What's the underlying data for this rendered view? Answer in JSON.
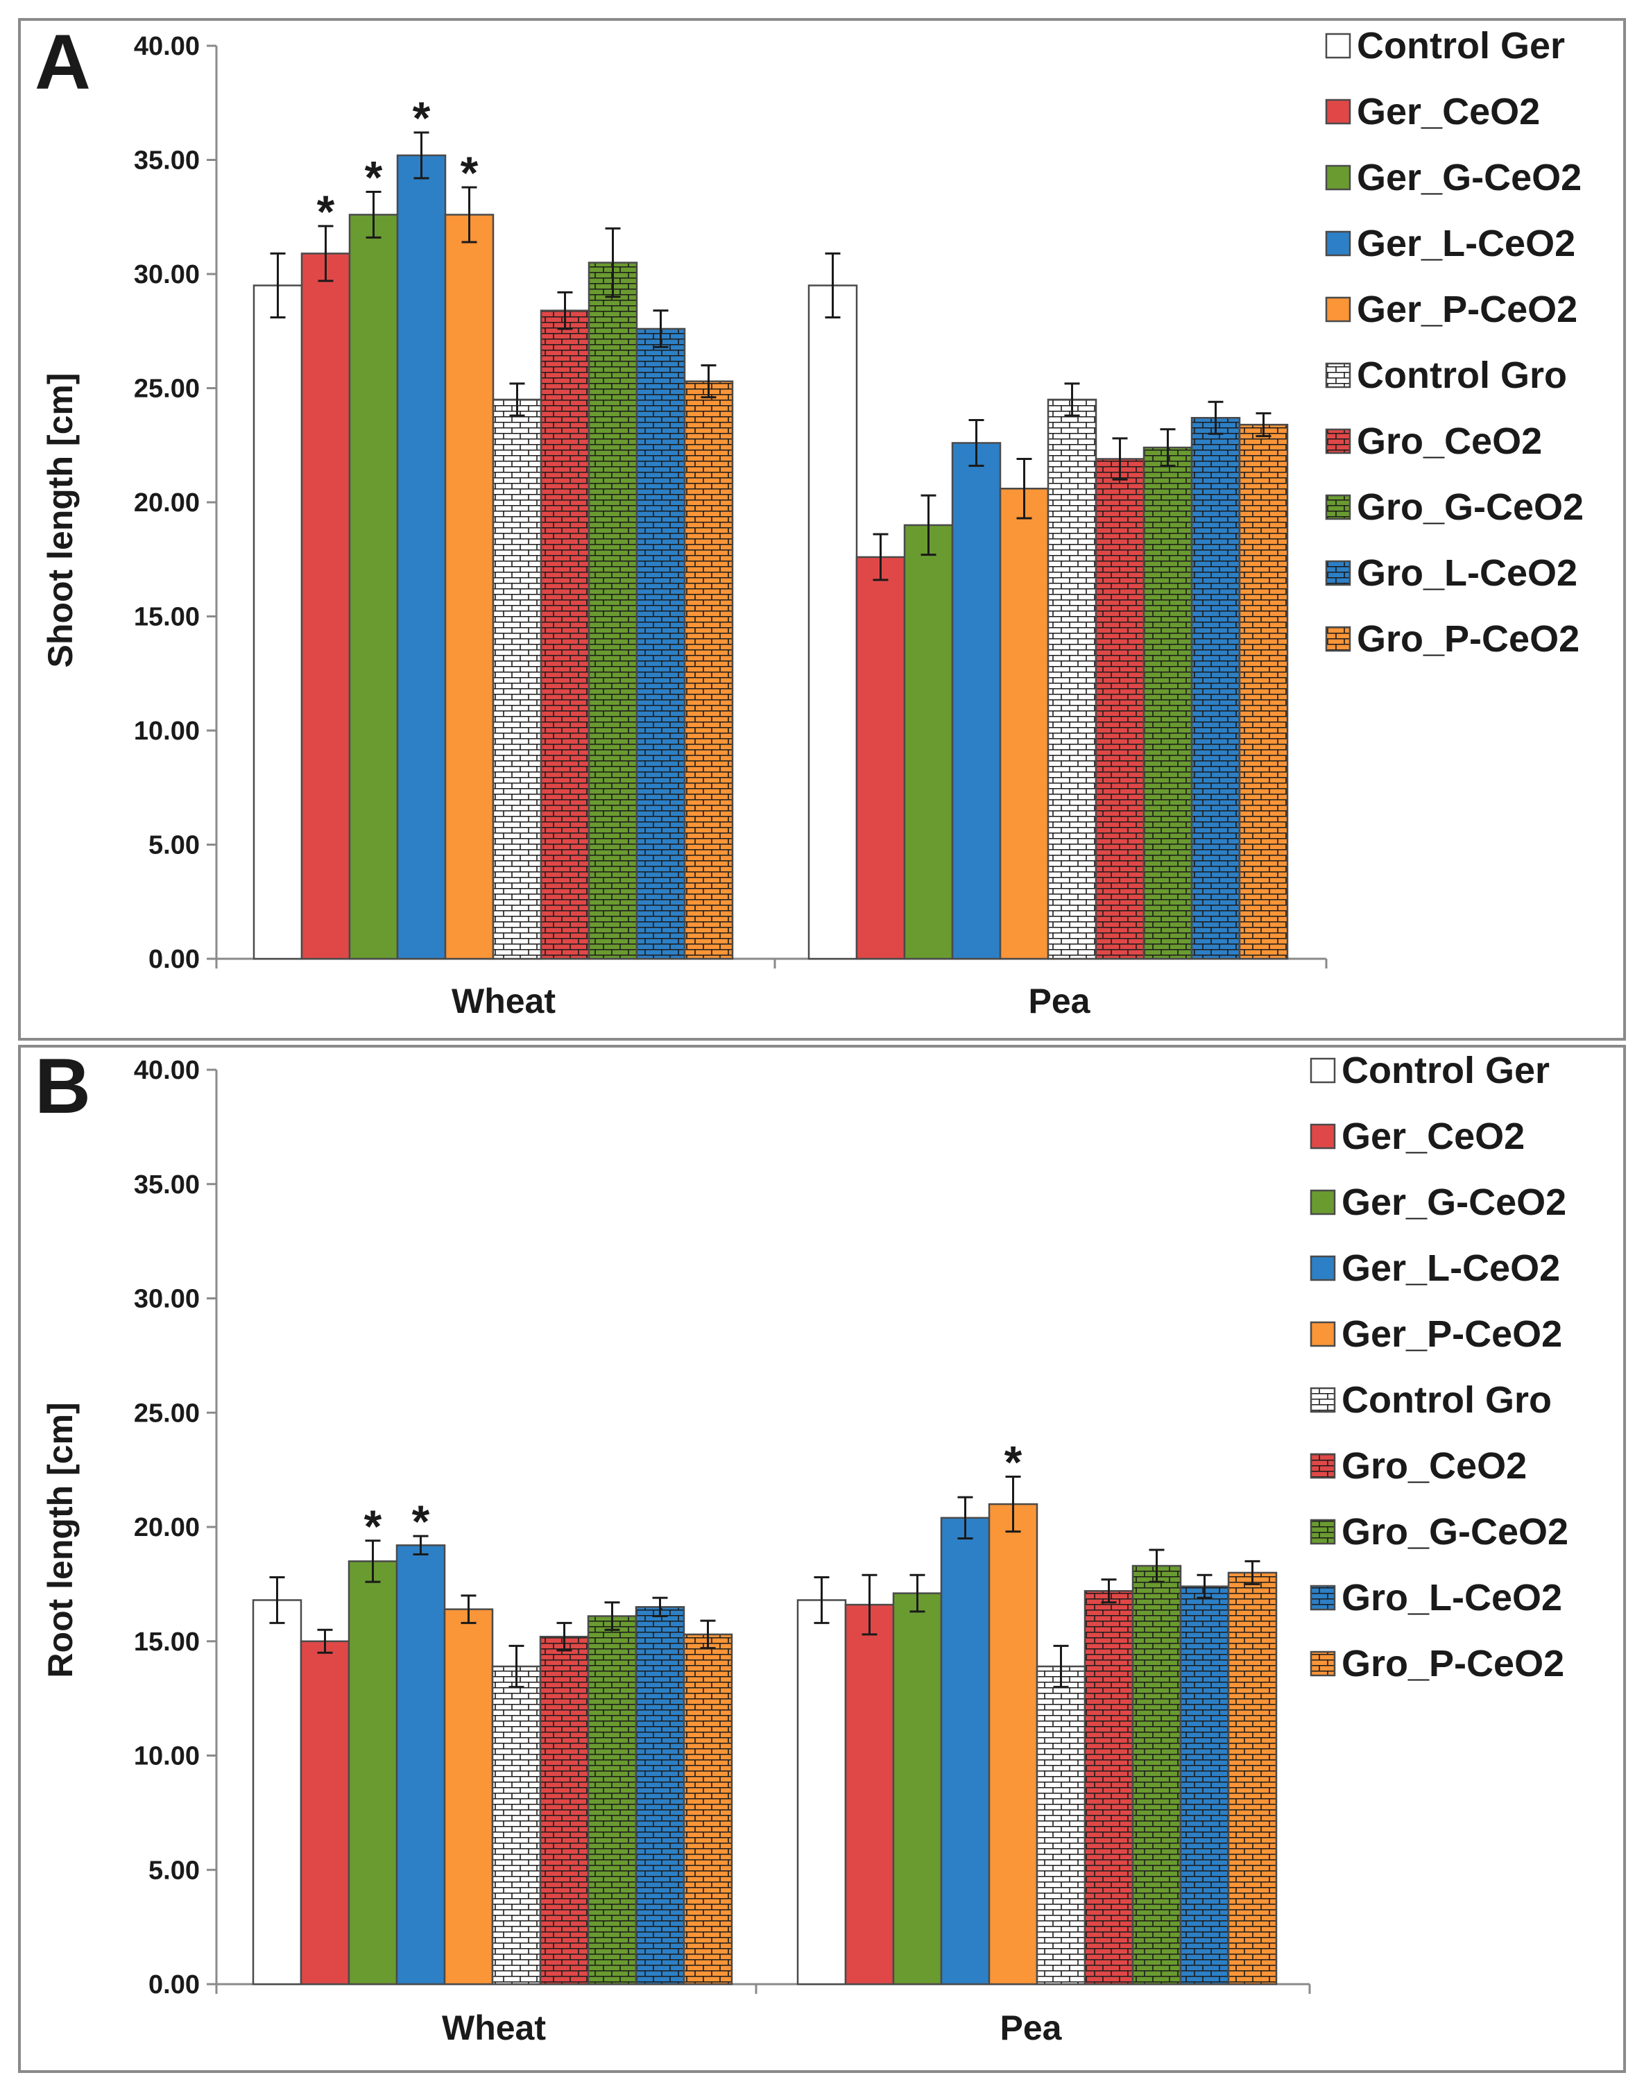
{
  "chart_data": [
    {
      "type": "bar",
      "panel": "A",
      "ylabel": "Shoot length [cm]",
      "xlabel": "",
      "ylim": [
        0,
        40
      ],
      "yticks": [
        "0.00",
        "5.00",
        "10.00",
        "15.00",
        "20.00",
        "25.00",
        "30.00",
        "35.00",
        "40.00"
      ],
      "categories": [
        "Wheat",
        "Pea"
      ],
      "legend_position": "top-right",
      "series": [
        {
          "name": "Control Ger",
          "color": "#ffffff",
          "pattern": "none",
          "values": [
            29.5,
            29.5
          ],
          "errors": [
            1.4,
            1.4
          ],
          "significant": [
            false,
            false
          ]
        },
        {
          "name": "Ger_CeO2",
          "color": "#e04848",
          "pattern": "none",
          "values": [
            30.9,
            17.6
          ],
          "errors": [
            1.2,
            1.0
          ],
          "significant": [
            true,
            false
          ]
        },
        {
          "name": "Ger_G-CeO2",
          "color": "#6a9b30",
          "pattern": "none",
          "values": [
            32.6,
            19.0
          ],
          "errors": [
            1.0,
            1.3
          ],
          "significant": [
            true,
            false
          ]
        },
        {
          "name": "Ger_L-CeO2",
          "color": "#2d80c6",
          "pattern": "none",
          "values": [
            35.2,
            22.6
          ],
          "errors": [
            1.0,
            1.0
          ],
          "significant": [
            true,
            false
          ]
        },
        {
          "name": "Ger_P-CeO2",
          "color": "#fa9538",
          "pattern": "none",
          "values": [
            32.6,
            20.6
          ],
          "errors": [
            1.2,
            1.3
          ],
          "significant": [
            true,
            false
          ]
        },
        {
          "name": "Control Gro",
          "color": "#ffffff",
          "pattern": "brick",
          "values": [
            24.5,
            24.5
          ],
          "errors": [
            0.7,
            0.7
          ],
          "significant": [
            false,
            false
          ]
        },
        {
          "name": "Gro_CeO2",
          "color": "#e04848",
          "pattern": "brick",
          "values": [
            28.4,
            21.9
          ],
          "errors": [
            0.8,
            0.9
          ],
          "significant": [
            false,
            false
          ]
        },
        {
          "name": "Gro_G-CeO2",
          "color": "#6a9b30",
          "pattern": "brick",
          "values": [
            30.5,
            22.4
          ],
          "errors": [
            1.5,
            0.8
          ],
          "significant": [
            false,
            false
          ]
        },
        {
          "name": "Gro_L-CeO2",
          "color": "#2d80c6",
          "pattern": "brick",
          "values": [
            27.6,
            23.7
          ],
          "errors": [
            0.8,
            0.7
          ],
          "significant": [
            false,
            false
          ]
        },
        {
          "name": "Gro_P-CeO2",
          "color": "#fa9538",
          "pattern": "brick",
          "values": [
            25.3,
            23.4
          ],
          "errors": [
            0.7,
            0.5
          ],
          "significant": [
            false,
            false
          ]
        }
      ]
    },
    {
      "type": "bar",
      "panel": "B",
      "ylabel": "Root length [cm]",
      "xlabel": "",
      "ylim": [
        0,
        40
      ],
      "yticks": [
        "0.00",
        "5.00",
        "10.00",
        "15.00",
        "20.00",
        "25.00",
        "30.00",
        "35.00",
        "40.00"
      ],
      "categories": [
        "Wheat",
        "Pea"
      ],
      "legend_position": "top-right",
      "series": [
        {
          "name": "Control Ger",
          "color": "#ffffff",
          "pattern": "none",
          "values": [
            16.8,
            16.8
          ],
          "errors": [
            1.0,
            1.0
          ],
          "significant": [
            false,
            false
          ]
        },
        {
          "name": "Ger_CeO2",
          "color": "#e04848",
          "pattern": "none",
          "values": [
            15.0,
            16.6
          ],
          "errors": [
            0.5,
            1.3
          ],
          "significant": [
            false,
            false
          ]
        },
        {
          "name": "Ger_G-CeO2",
          "color": "#6a9b30",
          "pattern": "none",
          "values": [
            18.5,
            17.1
          ],
          "errors": [
            0.9,
            0.8
          ],
          "significant": [
            true,
            false
          ]
        },
        {
          "name": "Ger_L-CeO2",
          "color": "#2d80c6",
          "pattern": "none",
          "values": [
            19.2,
            20.4
          ],
          "errors": [
            0.4,
            0.9
          ],
          "significant": [
            true,
            false
          ]
        },
        {
          "name": "Ger_P-CeO2",
          "color": "#fa9538",
          "pattern": "none",
          "values": [
            16.4,
            21.0
          ],
          "errors": [
            0.6,
            1.2
          ],
          "significant": [
            false,
            true
          ]
        },
        {
          "name": "Control Gro",
          "color": "#ffffff",
          "pattern": "brick",
          "values": [
            13.9,
            13.9
          ],
          "errors": [
            0.9,
            0.9
          ],
          "significant": [
            false,
            false
          ]
        },
        {
          "name": "Gro_CeO2",
          "color": "#e04848",
          "pattern": "brick",
          "values": [
            15.2,
            17.2
          ],
          "errors": [
            0.6,
            0.5
          ],
          "significant": [
            false,
            false
          ]
        },
        {
          "name": "Gro_G-CeO2",
          "color": "#6a9b30",
          "pattern": "brick",
          "values": [
            16.1,
            18.3
          ],
          "errors": [
            0.6,
            0.7
          ],
          "significant": [
            false,
            false
          ]
        },
        {
          "name": "Gro_L-CeO2",
          "color": "#2d80c6",
          "pattern": "brick",
          "values": [
            16.5,
            17.4
          ],
          "errors": [
            0.4,
            0.5
          ],
          "significant": [
            false,
            false
          ]
        },
        {
          "name": "Gro_P-CeO2",
          "color": "#fa9538",
          "pattern": "brick",
          "values": [
            15.3,
            18.0
          ],
          "errors": [
            0.6,
            0.5
          ],
          "significant": [
            false,
            false
          ]
        }
      ]
    }
  ]
}
